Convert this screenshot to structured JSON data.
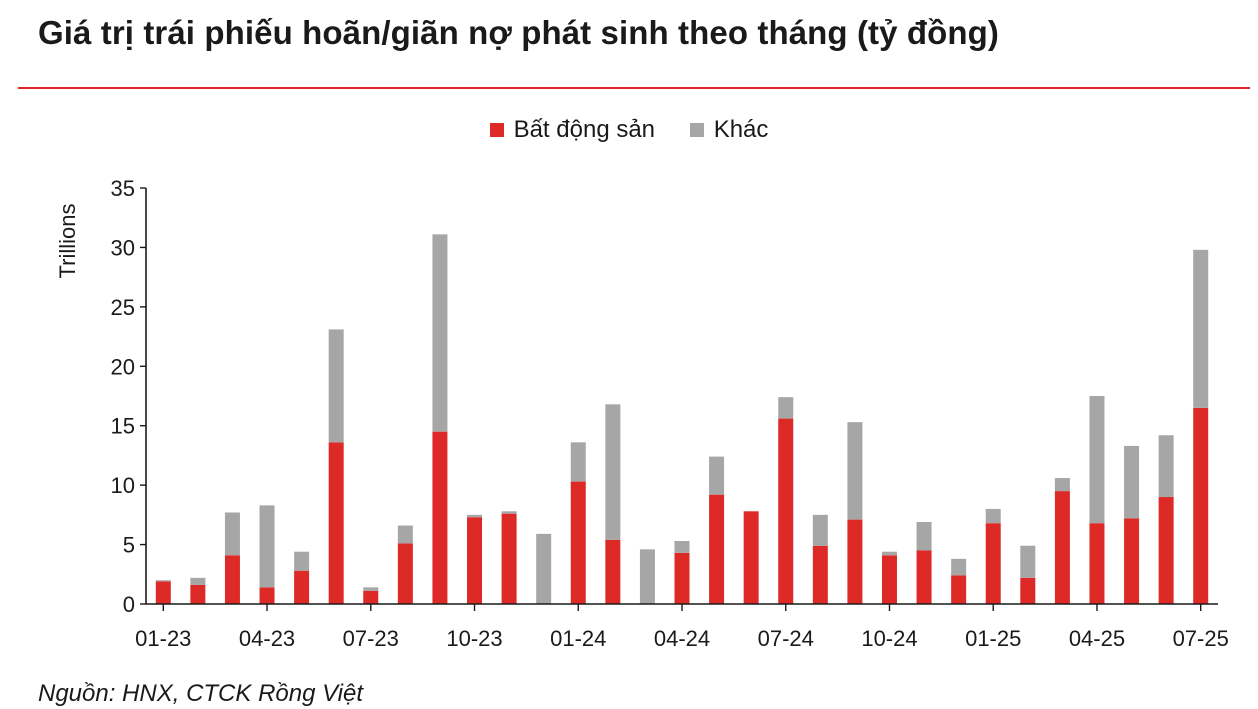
{
  "title": "Giá trị trái phiếu hoãn/giãn nợ phát sinh theo tháng (tỷ đồng)",
  "source": "Nguồn: HNX, CTCK Rồng Việt",
  "colors": {
    "bat_dong_san": "#dd2a27",
    "khac": "#a6a6a6",
    "rule": "#e0262b"
  },
  "chart_data": {
    "type": "bar",
    "stacked": true,
    "title": "Giá trị trái phiếu hoãn/giãn nợ phát sinh theo tháng (tỷ đồng)",
    "ylabel": "Trillions",
    "xlabel": "",
    "ylim": [
      0,
      35
    ],
    "yticks": [
      0,
      5,
      10,
      15,
      20,
      25,
      30,
      35
    ],
    "legend_position": "top-center",
    "grid": false,
    "categories": [
      "01-23",
      "02-23",
      "03-23",
      "04-23",
      "05-23",
      "06-23",
      "07-23",
      "08-23",
      "09-23",
      "10-23",
      "11-23",
      "12-23",
      "01-24",
      "02-24",
      "03-24",
      "04-24",
      "05-24",
      "06-24",
      "07-24",
      "08-24",
      "09-24",
      "10-24",
      "11-24",
      "12-24",
      "01-25",
      "02-25",
      "03-25",
      "04-25",
      "05-25",
      "06-25",
      "07-25"
    ],
    "xtick_labels": [
      "01-23",
      "04-23",
      "07-23",
      "10-23",
      "01-24",
      "04-24",
      "07-24",
      "10-24",
      "01-25",
      "04-25",
      "07-25"
    ],
    "series": [
      {
        "name": "Bất động sản",
        "values": [
          1.9,
          1.6,
          4.1,
          1.4,
          2.8,
          13.6,
          1.1,
          5.1,
          14.5,
          7.3,
          7.6,
          0,
          10.3,
          5.4,
          0,
          4.3,
          9.2,
          7.8,
          15.6,
          4.9,
          7.1,
          4.1,
          4.5,
          2.4,
          6.8,
          2.2,
          9.5,
          6.8,
          7.2,
          9.0,
          16.5
        ]
      },
      {
        "name": "Khác",
        "values": [
          0.1,
          0.6,
          3.6,
          6.9,
          1.6,
          9.5,
          0.3,
          1.5,
          16.6,
          0.2,
          0.2,
          5.9,
          3.3,
          11.4,
          4.6,
          1.0,
          3.2,
          0,
          1.8,
          2.6,
          8.2,
          0.3,
          2.4,
          1.4,
          1.2,
          2.7,
          1.1,
          10.7,
          6.1,
          5.2,
          13.3
        ]
      }
    ]
  }
}
